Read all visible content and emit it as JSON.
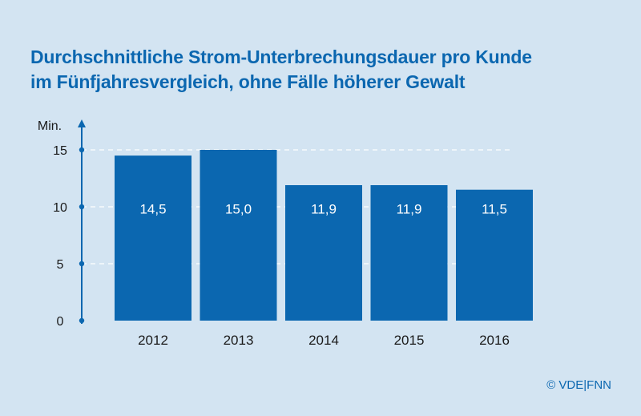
{
  "chart_data": {
    "type": "bar",
    "title_line1": "Durchschnittliche Strom-Unterbrechungsdauer pro Kunde",
    "title_line2": "im Fünfjahresvergleich, ohne Fälle höherer Gewalt",
    "ylabel": "Min.",
    "categories": [
      "2012",
      "2013",
      "2014",
      "2015",
      "2016"
    ],
    "values": [
      14.5,
      15.0,
      11.9,
      11.9,
      11.5
    ],
    "value_labels": [
      "14,5",
      "15,0",
      "11,9",
      "11,9",
      "11,5"
    ],
    "yticks": [
      0,
      5,
      10,
      15
    ],
    "ylim": [
      0,
      17
    ],
    "grid": true,
    "bar_color": "#0b67b0",
    "axis_color": "#0b67b0",
    "grid_color": "#ffffff"
  },
  "footer": {
    "copyright": "© VDE|FNN"
  }
}
